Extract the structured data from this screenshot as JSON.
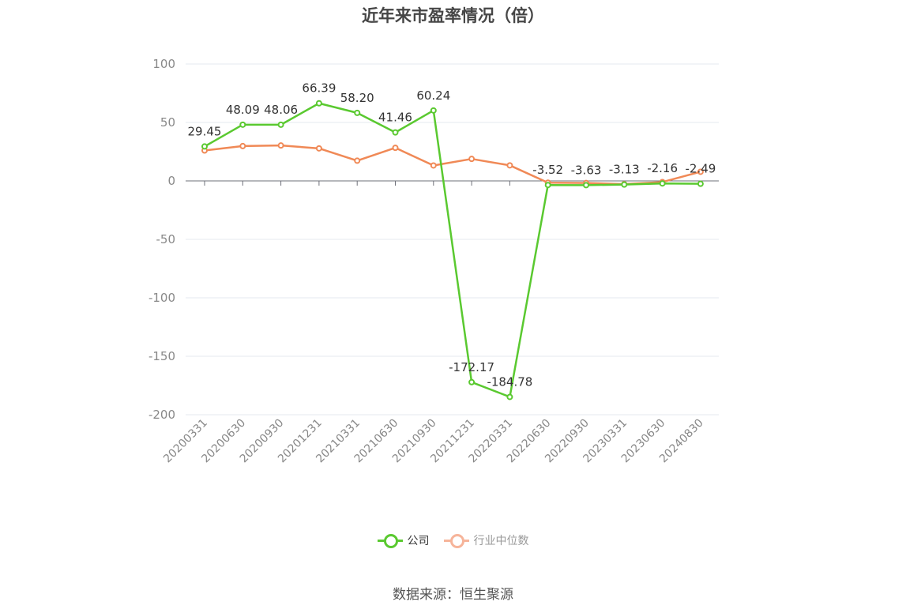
{
  "chart_data": {
    "type": "line",
    "title": "近年来市盈率情况（倍）",
    "categories": [
      "20200331",
      "20200630",
      "20200930",
      "20201231",
      "20210331",
      "20210630",
      "20210930",
      "20211231",
      "20220331",
      "20220630",
      "20220930",
      "20230331",
      "20230630",
      "20240830"
    ],
    "ylim": [
      -200,
      100
    ],
    "yticks": [
      100,
      50,
      0,
      -50,
      -100,
      -150,
      -200
    ],
    "grid": true,
    "legend_position": "bottom",
    "series": [
      {
        "name": "公司",
        "color": "#5ac930",
        "values": [
          29.45,
          48.09,
          48.06,
          66.39,
          58.2,
          41.46,
          60.24,
          -172.17,
          -184.78,
          -3.52,
          -3.63,
          -3.13,
          -2.16,
          -2.49
        ],
        "labels": [
          "29.45",
          "48.09",
          "48.06",
          "66.39",
          "58.20",
          "41.46",
          "60.24",
          "-172.17",
          "-184.78",
          "-3.52",
          "-3.63",
          "-3.13",
          "-2.16",
          "-2.49"
        ]
      },
      {
        "name": "行业中位数",
        "color": "#f08956",
        "values": [
          26.0,
          29.8,
          30.3,
          27.8,
          17.3,
          28.3,
          13.2,
          18.8,
          13.3,
          -1.5,
          -1.8,
          -2.8,
          -1.0,
          7.8
        ]
      }
    ]
  },
  "legend": {
    "company": "公司",
    "industry": "行业中位数",
    "company_color": "#5ac930",
    "industry_color": "#f6b49a"
  },
  "source": "数据来源：恒生聚源"
}
